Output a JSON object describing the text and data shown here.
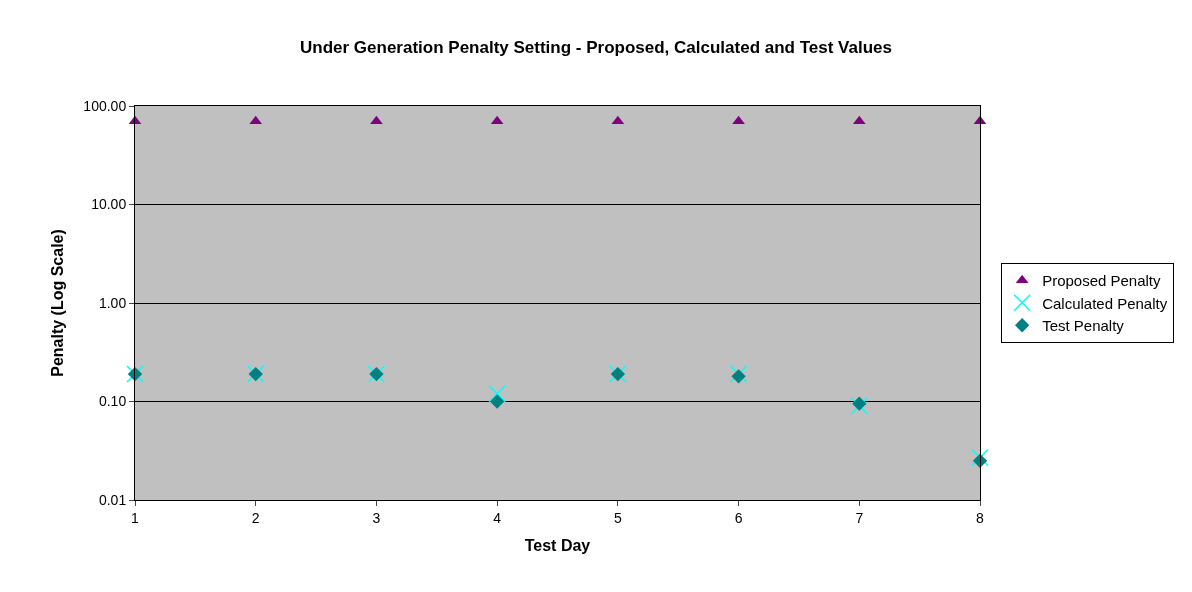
{
  "chart_data": {
    "type": "scatter",
    "title": "Under Generation Penalty Setting - Proposed, Calculated and Test Values",
    "xlabel": "Test Day",
    "ylabel": "Penalty (Log Scale)",
    "x": [
      1,
      2,
      3,
      4,
      5,
      6,
      7,
      8
    ],
    "series": [
      {
        "name": "Proposed Penalty",
        "color": "#800080",
        "marker": "triangle",
        "values": [
          70,
          70,
          70,
          70,
          70,
          70,
          70,
          70
        ]
      },
      {
        "name": "Calculated Penalty",
        "color": "#00ffff",
        "marker": "cross",
        "values": [
          0.19,
          0.19,
          0.19,
          0.12,
          0.19,
          0.19,
          0.09,
          0.027
        ]
      },
      {
        "name": "Test Penalty",
        "color": "#008080",
        "marker": "diamond",
        "values": [
          0.19,
          0.19,
          0.19,
          0.1,
          0.19,
          0.18,
          0.095,
          0.025
        ]
      }
    ],
    "log": "y",
    "grid": "y",
    "legend": "right",
    "xlim": [
      1,
      8
    ],
    "xticks": [
      1,
      2,
      3,
      4,
      5,
      6,
      7,
      8
    ],
    "ylim": [
      0.01,
      100
    ],
    "yticks": [
      {
        "value": 0.01,
        "label": "0.01"
      },
      {
        "value": 0.1,
        "label": "0.10"
      },
      {
        "value": 1,
        "label": "1.00"
      },
      {
        "value": 10,
        "label": "10.00"
      },
      {
        "value": 100,
        "label": "100.00"
      }
    ]
  }
}
